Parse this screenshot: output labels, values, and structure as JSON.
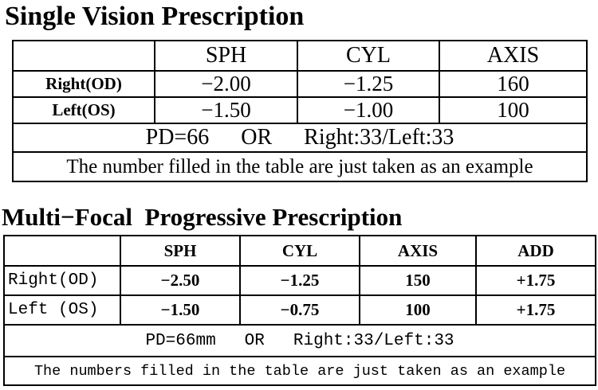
{
  "single": {
    "title": "Single Vision Prescription",
    "table": {
      "header": [
        "SPH",
        "CYL",
        "AXIS"
      ],
      "rows": [
        [
          "Right(OD)",
          "−2.00",
          "−1.25",
          "160"
        ],
        [
          "Left(OS)",
          "−1.50",
          "−1.00",
          "100"
        ]
      ],
      "pd": [
        "PD=66",
        "OR",
        "Right:33/Left:33"
      ],
      "note": "The number filled in the table are just taken as an example"
    }
  },
  "multi": {
    "title": "Multi−Focal  Progressive Prescription",
    "table": {
      "header": [
        "SPH",
        "CYL",
        "AXIS",
        "ADD"
      ],
      "rows": [
        [
          "Right(OD)",
          "−2.50",
          "−1.25",
          "150",
          "+1.75"
        ],
        [
          "Left (OS)",
          "−1.50",
          "−0.75",
          "100",
          "+1.75"
        ]
      ],
      "pd": [
        "PD=66mm",
        "OR",
        "Right:33/Left:33"
      ],
      "note": "The numbers filled in the table are just taken as an example"
    }
  }
}
